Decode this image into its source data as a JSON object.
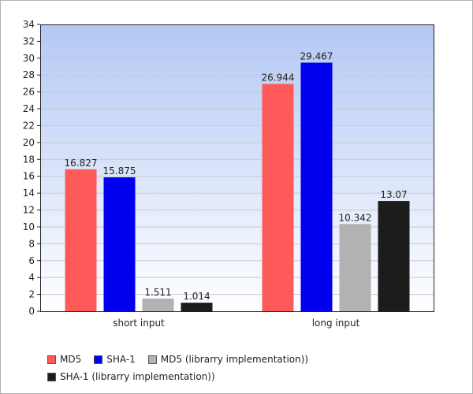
{
  "chart_data": {
    "type": "bar",
    "categories": [
      "short input",
      "long input"
    ],
    "series": [
      {
        "name": "MD5",
        "values": [
          16.827,
          26.944
        ],
        "labels": [
          "16.827",
          "26.944"
        ],
        "color": "#ff5a5a"
      },
      {
        "name": "SHA-1",
        "values": [
          15.875,
          29.467
        ],
        "labels": [
          "15.875",
          "29.467"
        ],
        "color": "#0000ee"
      },
      {
        "name": "MD5 (librarry implementation))",
        "values": [
          1.511,
          10.342
        ],
        "labels": [
          "1.511",
          "10.342"
        ],
        "color": "#b2b2b2"
      },
      {
        "name": "SHA-1 (librarry implementation))",
        "values": [
          1.014,
          13.07
        ],
        "labels": [
          "1.014",
          "13.07"
        ],
        "color": "#1c1c1c"
      }
    ],
    "ylim": [
      0,
      34
    ],
    "yticks": [
      "0",
      "2",
      "4",
      "6",
      "8",
      "10",
      "12",
      "14",
      "16",
      "18",
      "20",
      "22",
      "24",
      "26",
      "28",
      "30",
      "32",
      "34"
    ],
    "grid": true,
    "legend_position": "bottom-left",
    "title": "",
    "xlabel": "",
    "ylabel": ""
  },
  "colors": {
    "plot_background_top": "#b3c8f4",
    "plot_background_bottom": "#ffffff",
    "gridline": "#c8c8d4"
  }
}
